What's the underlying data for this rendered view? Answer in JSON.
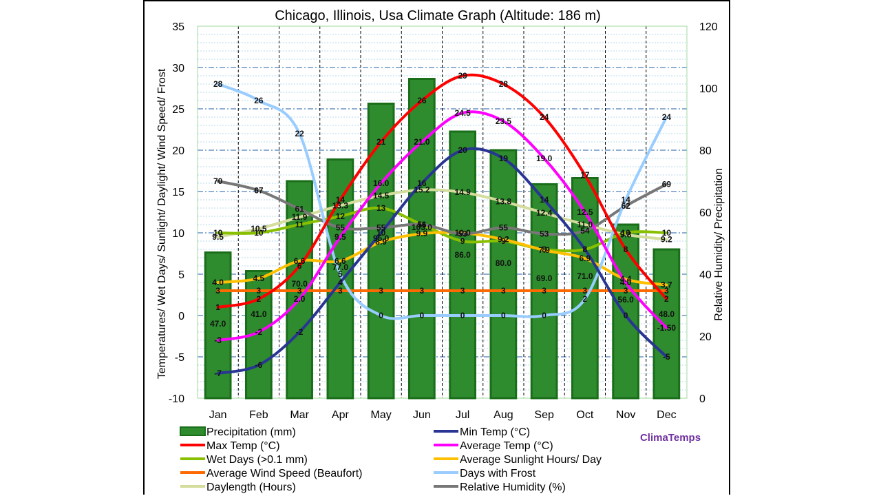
{
  "chart_data": {
    "type": "combo",
    "title": "Chicago, Illinois, Usa Climate Graph (Altitude: 186 m)",
    "ylabel_left": "Temperatures/ Wet Days/ Sunlight/ Daylight/ Wind Speed/ Frost",
    "ylabel_right": "Relative Humidity/ Precipitation",
    "ylim_left": [
      -10,
      35
    ],
    "ylim_right": [
      0,
      120
    ],
    "left_ticks": [
      "35",
      "30",
      "25",
      "20",
      "15",
      "10",
      "5",
      "0",
      "-5",
      "-10"
    ],
    "right_ticks": [
      "120",
      "100",
      "80",
      "60",
      "40",
      "20",
      "0"
    ],
    "categories": [
      "Jan",
      "Feb",
      "Mar",
      "Apr",
      "May",
      "Jun",
      "Jul",
      "Aug",
      "Sep",
      "Oct",
      "Nov",
      "Dec"
    ],
    "precipitation": {
      "name": "Precipitation (mm)",
      "color": "#2e8b2e",
      "values": [
        47.0,
        41.0,
        70.0,
        77.0,
        95.0,
        103.0,
        86.0,
        80.0,
        69.0,
        71.0,
        56.0,
        48.0
      ],
      "labels": [
        "47.0",
        "41.0",
        "70.0",
        "77.0",
        "95.0",
        "103.0",
        "86.0",
        "80.0",
        "69.0",
        "71.0",
        "56.0",
        "48.0"
      ]
    },
    "series": [
      {
        "key": "max",
        "name": "Max Temp (°C)",
        "color": "#ff0000",
        "axis": "left",
        "values": [
          1,
          2,
          6,
          14,
          21,
          26,
          29,
          28,
          24,
          17,
          8,
          2
        ],
        "labels": [
          "1",
          "2",
          "6",
          "14",
          "21",
          "26",
          "29",
          "28",
          "24",
          "17",
          "8",
          "2"
        ]
      },
      {
        "key": "min",
        "name": "Min Temp (°C)",
        "color": "#283593",
        "axis": "left",
        "values": [
          -7,
          -6,
          -2,
          4,
          10,
          16,
          20,
          19,
          14,
          8,
          0,
          -5
        ],
        "labels": [
          "-7",
          "-6",
          "-2",
          "4",
          "10",
          "16",
          "20",
          "19",
          "14",
          "8",
          "0",
          "-5"
        ]
      },
      {
        "key": "avg",
        "name": "Average Temp (°C)",
        "color": "#ff00ff",
        "axis": "left",
        "values": [
          -3.0,
          -2.0,
          2.0,
          9.5,
          16.0,
          21.0,
          24.5,
          23.5,
          19.0,
          12.5,
          4.0,
          -1.5
        ],
        "labels": [
          "-3",
          "-2",
          "2.0",
          "9.5",
          "16.0",
          "21.0",
          "24.5",
          "23.5",
          "19.0",
          "12.5",
          "4.0",
          "-1.50"
        ]
      },
      {
        "key": "wet",
        "name": "Wet Days (>0.1 mm)",
        "color": "#88c000",
        "axis": "left",
        "values": [
          10,
          10,
          11,
          12,
          13,
          11,
          9,
          9,
          8,
          8,
          10,
          10
        ],
        "labels": [
          "10",
          "10",
          "11",
          "12",
          "13",
          "11",
          "9",
          "9",
          "8",
          "8",
          "10",
          "10"
        ]
      },
      {
        "key": "sun",
        "name": "Average Sunlight Hours/ Day",
        "color": "#ffc000",
        "axis": "left",
        "values": [
          4.0,
          4.5,
          6.6,
          6.6,
          8.9,
          9.9,
          10.0,
          9.2,
          7.9,
          6.9,
          4.4,
          3.7
        ],
        "labels": [
          "4.0",
          "4.5",
          "6.6",
          "6.6",
          "8.9",
          "9.9",
          "10.0",
          "9.2",
          "7.9",
          "6.9",
          "4.4",
          "3.7"
        ]
      },
      {
        "key": "wind",
        "name": "Average Wind Speed (Beaufort)",
        "color": "#ff6a00",
        "axis": "left",
        "values": [
          3,
          3,
          3,
          3,
          3,
          3,
          3,
          3,
          3,
          3,
          3,
          3
        ],
        "labels": [
          "3",
          "3",
          "3",
          "3",
          "3",
          "3",
          "3",
          "3",
          "3",
          "3",
          "3",
          "3"
        ]
      },
      {
        "key": "frost",
        "name": "Days with Frost",
        "color": "#99ccff",
        "axis": "left",
        "values": [
          28,
          26,
          22,
          5,
          0,
          0,
          0,
          0,
          0,
          2,
          14,
          24
        ],
        "labels": [
          "28",
          "26",
          "22",
          "5",
          "0",
          "0",
          "0",
          "0",
          "0",
          "2",
          "14",
          "24"
        ]
      },
      {
        "key": "daylen",
        "name": "Daylength (Hours)",
        "color": "#d4dd9c",
        "axis": "left",
        "values": [
          9.5,
          10.5,
          11.9,
          13.3,
          14.5,
          15.2,
          14.9,
          13.8,
          12.4,
          11.0,
          9.8,
          9.2
        ],
        "labels": [
          "9.5",
          "10.5",
          "11.9",
          "13.3",
          "14.5",
          "15.2",
          "14.9",
          "13.8",
          "12.4",
          "11.0",
          "9.8",
          "9.2"
        ]
      },
      {
        "key": "humidity",
        "name": "Relative Humidity (%)",
        "color": "#777777",
        "axis": "right",
        "values": [
          70,
          67,
          61,
          55,
          55,
          56,
          53,
          55,
          53,
          54,
          62,
          69
        ],
        "labels": [
          "70",
          "67",
          "61",
          "55",
          "55",
          "56",
          "53",
          "55",
          "53",
          "54",
          "62",
          "69"
        ]
      }
    ],
    "legend": {
      "position": "bottom",
      "entries_order": [
        "precip",
        "min",
        "max",
        "avg",
        "wet",
        "sun",
        "wind",
        "frost",
        "daylen",
        "humidity"
      ]
    },
    "brand": "ClimaTemps",
    "brand_color": "#7030a0",
    "grid": true
  }
}
